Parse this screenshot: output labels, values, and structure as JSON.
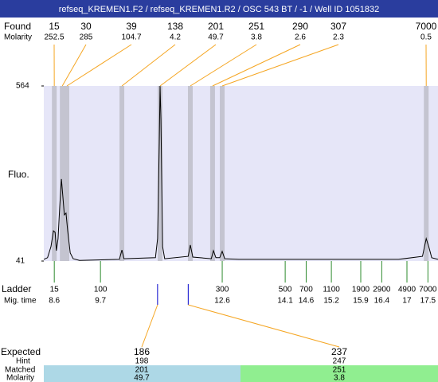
{
  "header": {
    "title": "refseq_KREMEN1.F2 / refseq_KREMEN1.R2 / OSC 543 BT / -1 / Well ID 1051832"
  },
  "chart_data": {
    "type": "electropherogram",
    "y_label": "Fluo.",
    "ylim": [
      41,
      564
    ],
    "yticks": [
      41,
      564
    ],
    "xlim": [
      8.35,
      17.74
    ],
    "color": "#000000",
    "x": [
      8.35,
      8.44,
      8.52,
      8.58,
      8.62,
      8.65,
      8.69,
      8.73,
      8.77,
      8.81,
      8.84,
      8.88,
      8.92,
      8.98,
      9.05,
      9.2,
      10.15,
      10.21,
      10.26,
      11.01,
      11.06,
      11.1,
      11.12,
      11.14,
      11.18,
      11.23,
      11.79,
      11.84,
      11.9,
      12.34,
      12.39,
      12.45,
      12.54,
      12.6,
      12.66,
      13.0,
      14.9,
      16.8,
      17.37,
      17.46,
      17.52,
      17.59,
      17.74
    ],
    "values": [
      46,
      51,
      84,
      131,
      127,
      72,
      108,
      203,
      286,
      226,
      179,
      184,
      131,
      65,
      48,
      43,
      46,
      74,
      48,
      51,
      108,
      393,
      564,
      464,
      84,
      48,
      55,
      89,
      53,
      48,
      72,
      51,
      51,
      70,
      48,
      46,
      46,
      46,
      55,
      108,
      84,
      51,
      46
    ]
  },
  "found": {
    "label": "Found",
    "molarity_label": "Molarity",
    "peaks": [
      {
        "size": 15,
        "molarity": 252.5,
        "time": 8.6
      },
      {
        "size": 30,
        "molarity": 285,
        "time": 8.79
      },
      {
        "size": 39,
        "molarity": 104.7,
        "time": 8.9
      },
      {
        "size": 138,
        "molarity": 4.2,
        "time": 10.21
      },
      {
        "size": 201,
        "molarity": 49.7,
        "time": 11.12
      },
      {
        "size": 251,
        "molarity": 3.8,
        "time": 11.84
      },
      {
        "size": 290,
        "molarity": 2.6,
        "time": 12.37
      },
      {
        "size": 307,
        "molarity": 2.3,
        "time": 12.6
      },
      {
        "size": 7000,
        "molarity": 0.5,
        "time": 17.46
      }
    ]
  },
  "ladder": {
    "label": "Ladder",
    "time_label": "Mig. time",
    "sizes": [
      15,
      100,
      300,
      500,
      700,
      1100,
      1900,
      2900,
      4900,
      7000
    ],
    "times": [
      8.6,
      9.7,
      12.6,
      14.1,
      14.6,
      15.2,
      15.9,
      16.4,
      17,
      17.5
    ]
  },
  "expected": {
    "label": "Expected",
    "hint_label": "Hint",
    "matched_label": "Matched",
    "molarity_label": "Molarity",
    "items": [
      {
        "size": 186,
        "hint": 198,
        "matched": 201,
        "molarity": 49.7,
        "time": 11.06
      },
      {
        "size": 237,
        "hint": 247,
        "matched": 251,
        "molarity": 3.8,
        "time": 11.79
      }
    ]
  }
}
